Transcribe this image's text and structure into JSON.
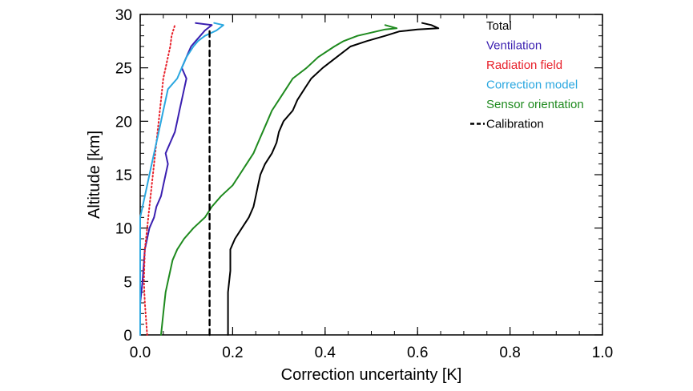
{
  "chart_data": {
    "type": "line",
    "xlabel": "Correction uncertainty [K]",
    "ylabel": "Altitude [km]",
    "xlim": [
      0.0,
      1.0
    ],
    "ylim": [
      0,
      30
    ],
    "xticks": [
      "0.0",
      "0.2",
      "0.4",
      "0.6",
      "0.8",
      "1.0"
    ],
    "xtick_values": [
      0.0,
      0.2,
      0.4,
      0.6,
      0.8,
      1.0
    ],
    "yticks": [
      "0",
      "5",
      "10",
      "15",
      "20",
      "25",
      "30"
    ],
    "ytick_values": [
      0,
      5,
      10,
      15,
      20,
      25,
      30
    ],
    "grid": false,
    "legend_position": "top-right",
    "series": [
      {
        "name": "Total",
        "color": "#000000",
        "style": "solid",
        "points": [
          [
            0.19,
            0
          ],
          [
            0.19,
            2
          ],
          [
            0.19,
            4
          ],
          [
            0.195,
            6
          ],
          [
            0.195,
            8
          ],
          [
            0.205,
            9
          ],
          [
            0.22,
            10
          ],
          [
            0.235,
            11
          ],
          [
            0.245,
            12
          ],
          [
            0.25,
            13
          ],
          [
            0.255,
            14
          ],
          [
            0.26,
            15
          ],
          [
            0.27,
            16
          ],
          [
            0.285,
            17
          ],
          [
            0.295,
            18
          ],
          [
            0.3,
            19
          ],
          [
            0.31,
            20
          ],
          [
            0.33,
            21
          ],
          [
            0.34,
            22
          ],
          [
            0.355,
            23
          ],
          [
            0.37,
            24
          ],
          [
            0.395,
            25
          ],
          [
            0.425,
            26
          ],
          [
            0.455,
            27
          ],
          [
            0.49,
            27.5
          ],
          [
            0.53,
            28
          ],
          [
            0.56,
            28.4
          ],
          [
            0.6,
            28.6
          ],
          [
            0.645,
            28.7
          ],
          [
            0.63,
            29
          ],
          [
            0.61,
            29.2
          ]
        ]
      },
      {
        "name": "Ventilation",
        "color": "#3a1fb0",
        "style": "solid",
        "points": [
          [
            0.0,
            0
          ],
          [
            0.0,
            3
          ],
          [
            0.005,
            5
          ],
          [
            0.01,
            8
          ],
          [
            0.02,
            10
          ],
          [
            0.03,
            11
          ],
          [
            0.035,
            12
          ],
          [
            0.045,
            13
          ],
          [
            0.05,
            14
          ],
          [
            0.055,
            15
          ],
          [
            0.06,
            16
          ],
          [
            0.055,
            17
          ],
          [
            0.065,
            18
          ],
          [
            0.075,
            19
          ],
          [
            0.08,
            20
          ],
          [
            0.085,
            21
          ],
          [
            0.09,
            22
          ],
          [
            0.095,
            23
          ],
          [
            0.1,
            24
          ],
          [
            0.09,
            25
          ],
          [
            0.1,
            26
          ],
          [
            0.11,
            27
          ],
          [
            0.12,
            27.5
          ],
          [
            0.13,
            28
          ],
          [
            0.14,
            28.5
          ],
          [
            0.155,
            29
          ],
          [
            0.12,
            29.2
          ]
        ]
      },
      {
        "name": "Radiation field",
        "color": "#e8202a",
        "style": "dotted",
        "points": [
          [
            0.015,
            0
          ],
          [
            0.01,
            3
          ],
          [
            0.008,
            5
          ],
          [
            0.01,
            8
          ],
          [
            0.015,
            10
          ],
          [
            0.02,
            12
          ],
          [
            0.025,
            14
          ],
          [
            0.03,
            16
          ],
          [
            0.035,
            18
          ],
          [
            0.04,
            20
          ],
          [
            0.045,
            22
          ],
          [
            0.05,
            24
          ],
          [
            0.055,
            25
          ],
          [
            0.06,
            26
          ],
          [
            0.065,
            27
          ],
          [
            0.068,
            28
          ],
          [
            0.075,
            29
          ]
        ]
      },
      {
        "name": "Correction model",
        "color": "#2aa7e0",
        "style": "solid",
        "points": [
          [
            0.0,
            0
          ],
          [
            0.0,
            4
          ],
          [
            0.0,
            8
          ],
          [
            0.0,
            10
          ],
          [
            0.0,
            11
          ],
          [
            0.005,
            12
          ],
          [
            0.01,
            13
          ],
          [
            0.015,
            14
          ],
          [
            0.02,
            15
          ],
          [
            0.025,
            16
          ],
          [
            0.03,
            17
          ],
          [
            0.035,
            18
          ],
          [
            0.04,
            19
          ],
          [
            0.045,
            20
          ],
          [
            0.05,
            21
          ],
          [
            0.055,
            22
          ],
          [
            0.06,
            23
          ],
          [
            0.08,
            24
          ],
          [
            0.09,
            25
          ],
          [
            0.1,
            26
          ],
          [
            0.115,
            27
          ],
          [
            0.125,
            27.5
          ],
          [
            0.14,
            28
          ],
          [
            0.165,
            28.5
          ],
          [
            0.18,
            29
          ],
          [
            0.16,
            29.2
          ]
        ]
      },
      {
        "name": "Sensor orientation",
        "color": "#1e8a1e",
        "style": "solid",
        "points": [
          [
            0.045,
            0
          ],
          [
            0.05,
            2
          ],
          [
            0.055,
            4
          ],
          [
            0.06,
            5
          ],
          [
            0.065,
            6
          ],
          [
            0.07,
            7
          ],
          [
            0.08,
            8
          ],
          [
            0.095,
            9
          ],
          [
            0.115,
            10
          ],
          [
            0.14,
            11
          ],
          [
            0.155,
            12
          ],
          [
            0.175,
            13
          ],
          [
            0.2,
            14
          ],
          [
            0.215,
            15
          ],
          [
            0.23,
            16
          ],
          [
            0.245,
            17
          ],
          [
            0.255,
            18
          ],
          [
            0.265,
            19
          ],
          [
            0.275,
            20
          ],
          [
            0.285,
            21
          ],
          [
            0.3,
            22
          ],
          [
            0.315,
            23
          ],
          [
            0.33,
            24
          ],
          [
            0.36,
            25
          ],
          [
            0.385,
            26
          ],
          [
            0.42,
            27
          ],
          [
            0.44,
            27.5
          ],
          [
            0.47,
            28
          ],
          [
            0.5,
            28.3
          ],
          [
            0.53,
            28.6
          ],
          [
            0.555,
            28.7
          ],
          [
            0.53,
            29
          ]
        ]
      },
      {
        "name": "Calibration",
        "color": "#000000",
        "style": "dashed",
        "points": [
          [
            0.15,
            0
          ],
          [
            0.15,
            28.7
          ]
        ]
      }
    ]
  }
}
